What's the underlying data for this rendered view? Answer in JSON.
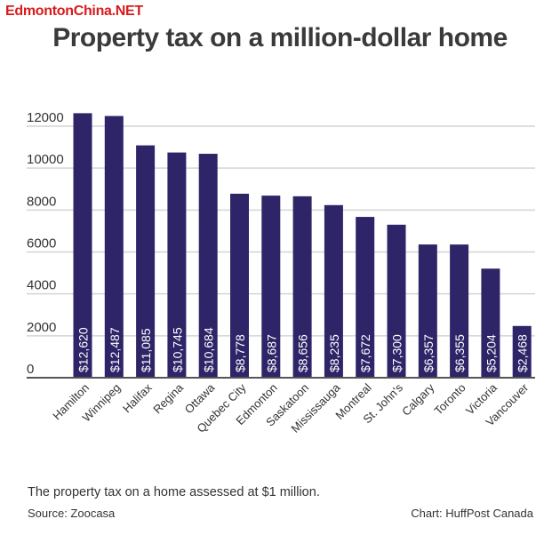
{
  "watermark": "EdmontonChina.NET",
  "footer": {
    "caption": "The property tax on a home assessed at $1 million.",
    "source": "Source: Zoocasa",
    "credit": "Chart: HuffPost Canada"
  },
  "colors": {
    "bar": "#2e2568",
    "grid": "#d4d4d4",
    "axis": "#555555",
    "watermark": "#d81b1b"
  },
  "chart_data": {
    "type": "bar",
    "title": "Property tax on a million-dollar home",
    "xlabel": "",
    "ylabel": "",
    "ylim": [
      0,
      12000
    ],
    "yticks": [
      0,
      2000,
      4000,
      6000,
      8000,
      10000,
      12000
    ],
    "grid": true,
    "categories": [
      "Hamilton",
      "Winnipeg",
      "Halifax",
      "Regina",
      "Ottawa",
      "Quebec City",
      "Edmonton",
      "Saskatoon",
      "Mississauga",
      "Montreal",
      "St. John's",
      "Calgary",
      "Toronto",
      "Victoria",
      "Vancouver"
    ],
    "values": [
      12620,
      12487,
      11085,
      10745,
      10684,
      8778,
      8687,
      8656,
      8235,
      7672,
      7300,
      6357,
      6355,
      5204,
      2468
    ],
    "data_labels": [
      "$12,620",
      "$12,487",
      "$11,085",
      "$10,745",
      "$10,684",
      "$8,778",
      "$8,687",
      "$8,656",
      "$8,235",
      "$7,672",
      "$7,300",
      "$6,357",
      "$6,355",
      "$5,204",
      "$2,468"
    ]
  }
}
